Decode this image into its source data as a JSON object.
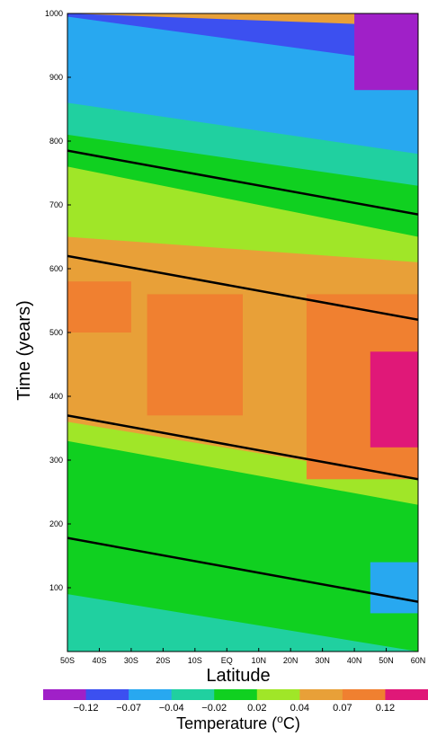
{
  "chart_data": {
    "type": "heatmap",
    "xlabel": "Latitude",
    "ylabel": "Time (years)",
    "xticks": [
      "50S",
      "40S",
      "30S",
      "20S",
      "10S",
      "EQ",
      "10N",
      "20N",
      "30N",
      "40N",
      "50N",
      "60N"
    ],
    "x_range": [
      -50,
      60
    ],
    "y_range": [
      0,
      1000
    ],
    "yticks": [
      100,
      200,
      300,
      400,
      500,
      600,
      700,
      800,
      900,
      1000
    ],
    "colorbar": {
      "title_prefix": "Temperature (",
      "title_super": "o",
      "title_suffix": "C)",
      "labels": [
        "−0.12",
        "−0.07",
        "−0.04",
        "−0.02",
        "0.02",
        "0.04",
        "0.07",
        "0.12"
      ],
      "thresholds": [
        -0.12,
        -0.07,
        -0.04,
        -0.02,
        0.02,
        0.04,
        0.07,
        0.12
      ],
      "colors": [
        "#a020c8",
        "#3c50f0",
        "#28a8f0",
        "#20d0a0",
        "#10d020",
        "#a0e628",
        "#e8a038",
        "#f08030",
        "#e01878"
      ]
    },
    "bands": [
      {
        "t_south": 1000,
        "t_north": 980,
        "value": -0.1
      },
      {
        "t_south": 995,
        "t_north": 920,
        "value": -0.06
      },
      {
        "t_south": 900,
        "t_north": 850,
        "value": -0.05
      },
      {
        "t_south": 860,
        "t_north": 780,
        "value": -0.03
      },
      {
        "t_south": 810,
        "t_north": 730,
        "value": 0.0
      },
      {
        "t_south": 760,
        "t_north": 650,
        "value": 0.03
      },
      {
        "t_south": 650,
        "t_north": 610,
        "value": 0.05
      },
      {
        "t_south": 610,
        "t_north": 520,
        "value": 0.06
      },
      {
        "t_south": 360,
        "t_north": 270,
        "value": 0.03
      },
      {
        "t_south": 330,
        "t_north": 230,
        "value": 0.0
      },
      {
        "t_south": 160,
        "t_north": 90,
        "value": -0.01
      },
      {
        "t_south": 90,
        "t_north": 0,
        "value": -0.03
      }
    ],
    "patches": [
      {
        "lat": [
          40,
          60
        ],
        "t": [
          880,
          1000
        ],
        "value": -0.13
      },
      {
        "lat": [
          -25,
          5
        ],
        "t": [
          370,
          560
        ],
        "value": 0.08
      },
      {
        "lat": [
          25,
          60
        ],
        "t": [
          270,
          560
        ],
        "value": 0.08
      },
      {
        "lat": [
          45,
          60
        ],
        "t": [
          320,
          470
        ],
        "value": 0.13
      },
      {
        "lat": [
          45,
          60
        ],
        "t": [
          60,
          140
        ],
        "value": -0.06
      },
      {
        "lat": [
          -50,
          -30
        ],
        "t": [
          500,
          580
        ],
        "value": 0.07
      }
    ],
    "lines": [
      {
        "t_south": 785,
        "t_north": 685
      },
      {
        "t_south": 620,
        "t_north": 520
      },
      {
        "t_south": 370,
        "t_north": 270
      },
      {
        "t_south": 178,
        "t_north": 78
      }
    ]
  }
}
